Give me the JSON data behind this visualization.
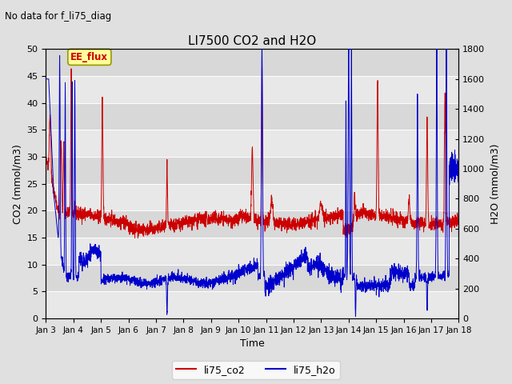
{
  "title": "LI7500 CO2 and H2O",
  "subtitle": "No data for f_li75_diag",
  "xlabel": "Time",
  "ylabel_left": "CO2 (mmol/m3)",
  "ylabel_right": "H2O (mmol/m3)",
  "ylim_left": [
    0,
    50
  ],
  "ylim_right": [
    0,
    1800
  ],
  "xlim": [
    0,
    15
  ],
  "xtick_labels": [
    "Jan 3",
    "Jan 4",
    "Jan 5",
    "Jan 6",
    "Jan 7",
    "Jan 8",
    "Jan 9",
    "Jan 10",
    "Jan 11",
    "Jan 12",
    "Jan 13",
    "Jan 14",
    "Jan 15",
    "Jan 16",
    "Jan 17",
    "Jan 18"
  ],
  "legend_label1": "li75_co2",
  "legend_label2": "li75_h2o",
  "annotation": "EE_flux",
  "co2_color": "#cc0000",
  "h2o_color": "#0000cc",
  "fig_bg": "#e0e0e0",
  "plot_bg_light": "#e8e8e8",
  "plot_bg_dark": "#d8d8d8",
  "grid_color": "#ffffff",
  "yticks_left": [
    0,
    5,
    10,
    15,
    20,
    25,
    30,
    35,
    40,
    45,
    50
  ],
  "yticks_right": [
    0,
    200,
    400,
    600,
    800,
    1000,
    1200,
    1400,
    1600,
    1800
  ]
}
